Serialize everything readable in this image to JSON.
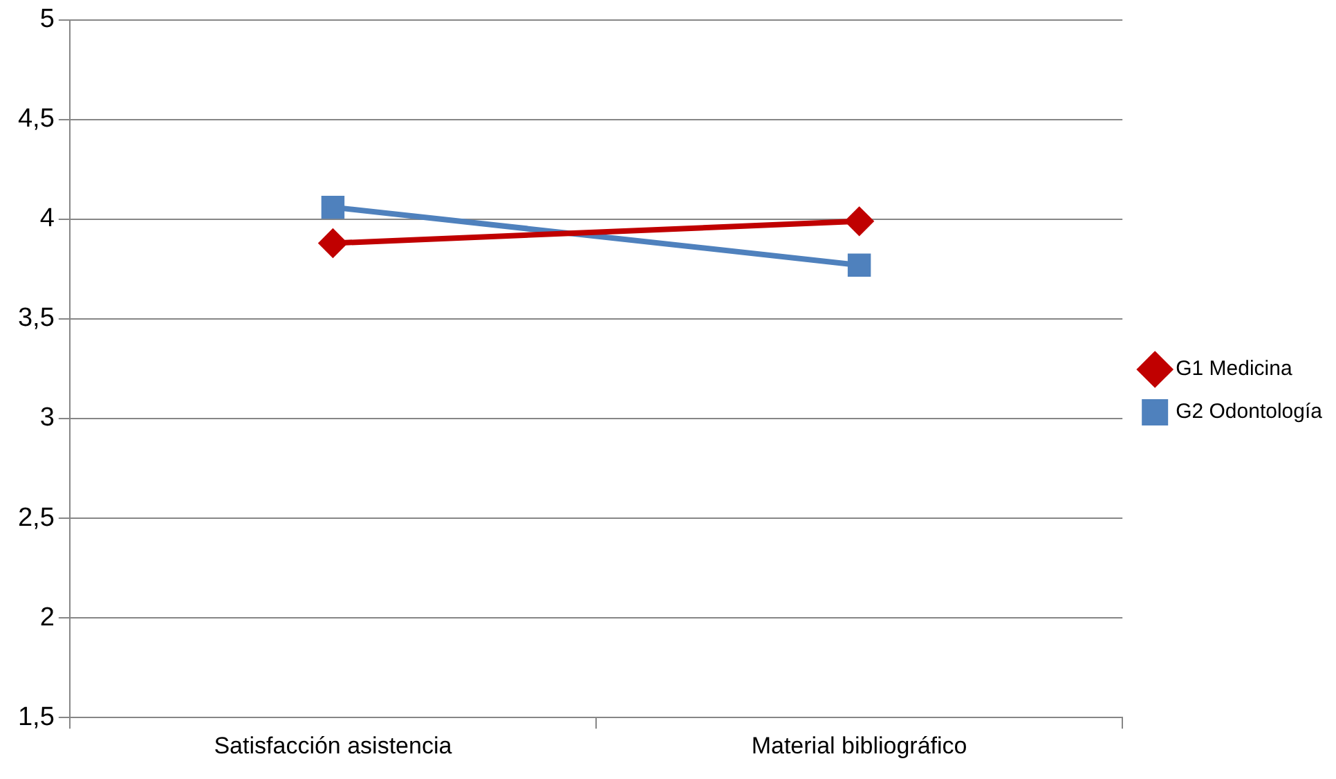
{
  "chart_data": {
    "type": "line",
    "categories": [
      "Satisfacción asistencia",
      "Material bibliográfico"
    ],
    "series": [
      {
        "name": "G1 Medicina",
        "color": "#c00000",
        "values": [
          3.88,
          3.99
        ],
        "marker": "diamond"
      },
      {
        "name": "G2 Odontología",
        "color": "#4f81bd",
        "values": [
          4.06,
          3.77
        ],
        "marker": "square"
      }
    ],
    "ylim": [
      1.5,
      5
    ],
    "yticks": [
      {
        "value": 1.5,
        "label": "1,5"
      },
      2,
      {
        "value": 2.5,
        "label": "2,5"
      },
      3,
      {
        "value": 3.5,
        "label": "3,5"
      },
      4,
      {
        "value": 4.5,
        "label": "4,5"
      },
      5
    ],
    "grid": "y",
    "legend": "right",
    "line_style": "solid"
  }
}
